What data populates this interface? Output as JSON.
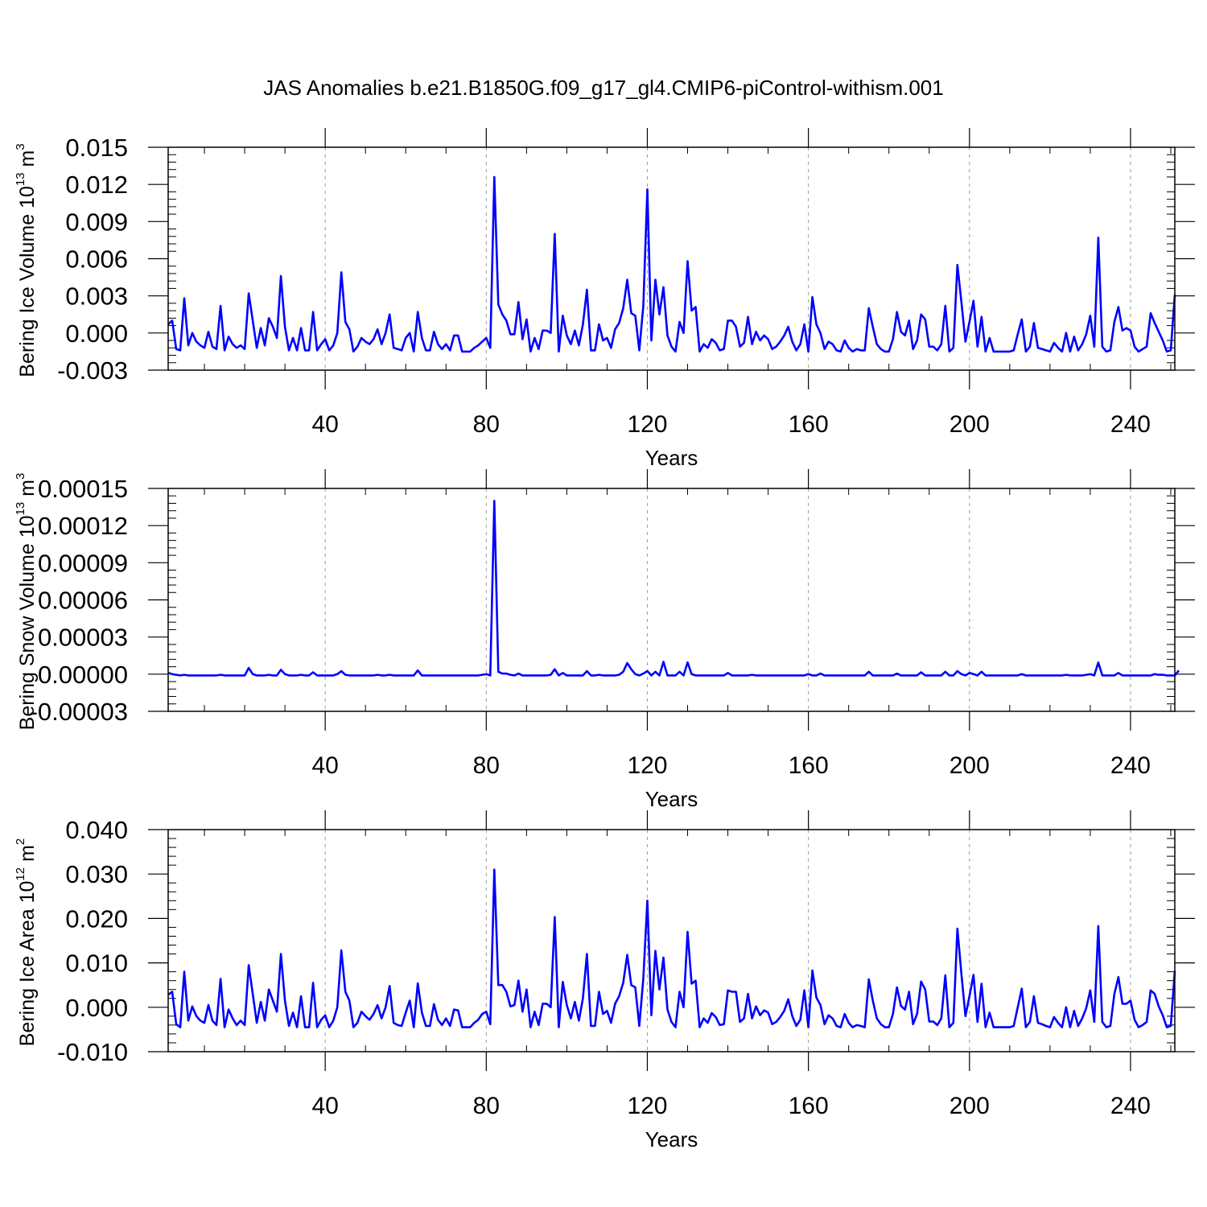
{
  "figure_title": "JAS Anomalies b.e21.B1850G.f09_g17_gl4.CMIP6-piControl-withism.001",
  "colors": {
    "series": "#0000ff",
    "grid": "#9a9a9a",
    "axes": "#000000"
  },
  "chart_data": [
    {
      "type": "line",
      "title": "",
      "xlabel": "Years",
      "ylabel": "Bering Ice Volume 10^13 m^3",
      "ylabel_parts": {
        "base": "Bering Ice Volume 10",
        "exp1": "13",
        "mid": " m",
        "exp2": "3"
      },
      "xlim": [
        1,
        251
      ],
      "ylim": [
        -0.003,
        0.015
      ],
      "xticks": [
        40,
        80,
        120,
        160,
        200,
        240
      ],
      "yticks": [
        -0.003,
        0.0,
        0.003,
        0.006,
        0.009,
        0.012,
        0.015
      ],
      "ytick_labels": [
        "-0.003",
        "0.000",
        "0.003",
        "0.006",
        "0.009",
        "0.012",
        "0.015"
      ],
      "grid_x": true,
      "series": [
        {
          "values": [
            0.0007,
            0.001,
            -0.0013,
            -0.0014,
            0.0028,
            -0.001,
            0.0,
            -0.0007,
            -0.001,
            -0.0012,
            0.0001,
            -0.0011,
            -0.0013,
            0.0022,
            -0.0014,
            -0.0003,
            -0.0009,
            -0.0012,
            -0.001,
            -0.0013,
            0.0032,
            0.001,
            -0.0012,
            0.0004,
            -0.001,
            0.0012,
            0.0005,
            -0.0004,
            0.0046,
            0.0005,
            -0.0014,
            -0.0004,
            -0.0014,
            0.0004,
            -0.0014,
            -0.0014,
            0.0017,
            -0.0014,
            -0.0009,
            -0.0005,
            -0.0014,
            -0.001,
            0.0,
            0.0049,
            0.0009,
            0.0003,
            -0.0015,
            -0.0011,
            -0.0004,
            -0.0007,
            -0.0009,
            -0.0005,
            0.0003,
            -0.0009,
            0.0,
            0.0015,
            -0.0012,
            -0.0013,
            -0.0014,
            -0.0004,
            0.0,
            -0.0015,
            0.0017,
            -0.0004,
            -0.0014,
            -0.0014,
            0.0001,
            -0.0009,
            -0.0013,
            -0.0009,
            -0.0014,
            -0.0002,
            -0.0002,
            -0.0015,
            -0.0015,
            -0.0015,
            -0.0012,
            -0.001,
            -0.0007,
            -0.0004,
            -0.0012,
            0.0126,
            0.0023,
            0.0015,
            0.001,
            -0.0001,
            -0.0001,
            0.0025,
            -0.0005,
            0.0011,
            -0.0015,
            -0.0004,
            -0.0013,
            0.0002,
            0.0002,
            0.0,
            0.008,
            -0.0015,
            0.0014,
            -0.0002,
            -0.0009,
            0.0002,
            -0.001,
            0.0007,
            0.0035,
            -0.0014,
            -0.0014,
            0.0007,
            -0.0006,
            -0.0004,
            -0.0012,
            0.0003,
            0.0008,
            0.002,
            0.0043,
            0.0016,
            0.0014,
            -0.0014,
            0.0022,
            0.0116,
            -0.0006,
            0.0043,
            0.0015,
            0.0037,
            -0.0002,
            -0.0011,
            -0.0015,
            0.0009,
            0.0,
            0.0058,
            0.0018,
            0.0021,
            -0.0015,
            -0.0009,
            -0.0012,
            -0.0005,
            -0.0008,
            -0.0014,
            -0.0013,
            0.001,
            0.001,
            0.0005,
            -0.0011,
            -0.0008,
            0.0013,
            -0.0009,
            0.0001,
            -0.0006,
            -0.0002,
            -0.0005,
            -0.0013,
            -0.0011,
            -0.0007,
            -0.0002,
            0.0005,
            -0.0007,
            -0.0014,
            -0.0009,
            0.0007,
            -0.0015,
            0.0029,
            0.0007,
            0.0,
            -0.0013,
            -0.0007,
            -0.0009,
            -0.0014,
            -0.0015,
            -0.0006,
            -0.0012,
            -0.0015,
            -0.0013,
            -0.0014,
            -0.0014,
            0.002,
            0.0005,
            -0.0009,
            -0.0013,
            -0.0015,
            -0.0015,
            -0.0005,
            0.0017,
            0.0001,
            -0.0002,
            0.001,
            -0.0013,
            -0.0006,
            0.0015,
            0.0011,
            -0.0011,
            -0.0011,
            -0.0014,
            -0.0009,
            0.0022,
            -0.0015,
            -0.0012,
            0.0055,
            0.0025,
            -0.0007,
            0.0009,
            0.0026,
            -0.0011,
            0.0013,
            -0.0015,
            -0.0004,
            -0.0015,
            -0.0015,
            -0.0015,
            -0.0015,
            -0.0015,
            -0.0014,
            -0.0001,
            0.0011,
            -0.0015,
            -0.0011,
            0.0008,
            -0.0012,
            -0.0013,
            -0.0014,
            -0.0015,
            -0.0008,
            -0.0012,
            -0.0015,
            0.0,
            -0.0015,
            -0.0003,
            -0.0014,
            -0.0009,
            -0.0001,
            0.0014,
            -0.0011,
            0.0077,
            -0.0011,
            -0.0015,
            -0.0014,
            0.0009,
            0.0021,
            0.0002,
            0.0004,
            0.0002,
            -0.0011,
            -0.0015,
            -0.0013,
            -0.0011,
            0.0016,
            0.0008,
            0.0001,
            -0.0006,
            -0.0015,
            -0.0014,
            0.0031
          ]
        }
      ]
    },
    {
      "type": "line",
      "title": "",
      "xlabel": "Years",
      "ylabel": "Bering Snow Volume 10^13 m^3",
      "ylabel_parts": {
        "base": "Bering Snow Volume 10",
        "exp1": "13",
        "mid": " m",
        "exp2": "3"
      },
      "xlim": [
        1,
        251
      ],
      "ylim": [
        -3e-05,
        0.00015
      ],
      "xticks": [
        40,
        80,
        120,
        160,
        200,
        240
      ],
      "yticks": [
        -3e-05,
        0.0,
        3e-05,
        6e-05,
        9e-05,
        0.00012,
        0.00015
      ],
      "ytick_labels": [
        "-0.00003",
        "0.00000",
        "0.00003",
        "0.00006",
        "0.00009",
        "0.00012",
        "0.00015"
      ],
      "grid_x": true,
      "series": [
        {
          "values": [
            1e-06,
            0.0,
            -5e-07,
            -1e-06,
            -5e-07,
            -1e-06,
            -1e-06,
            -1e-06,
            -1e-06,
            -1e-06,
            -1e-06,
            -1e-06,
            -1e-06,
            -5e-07,
            -1e-06,
            -1e-06,
            -1e-06,
            -1e-06,
            -1e-06,
            -1e-06,
            5e-06,
            0.0,
            -1e-06,
            -1e-06,
            -1e-06,
            -5e-07,
            -1e-06,
            -1e-06,
            3.5e-06,
            0.0,
            -1e-06,
            -1e-06,
            -1e-06,
            -5e-07,
            -1e-06,
            -1e-06,
            1.5e-06,
            -1e-06,
            -1e-06,
            -1e-06,
            -1e-06,
            -1e-06,
            0.0,
            2.5e-06,
            -5e-07,
            -1e-06,
            -1e-06,
            -1e-06,
            -1e-06,
            -1e-06,
            -1e-06,
            -1e-06,
            -5e-07,
            -1e-06,
            -1e-06,
            -5e-07,
            -1e-06,
            -1e-06,
            -1e-06,
            -1e-06,
            -1e-06,
            -1e-06,
            3e-06,
            -1e-06,
            -1e-06,
            -1e-06,
            -1e-06,
            -1e-06,
            -1e-06,
            -1e-06,
            -1e-06,
            -1e-06,
            -1e-06,
            -1e-06,
            -1e-06,
            -1e-06,
            -1e-06,
            -1e-06,
            -5e-07,
            0.0,
            -1e-06,
            0.00014,
            2e-06,
            5e-07,
            5e-07,
            -5e-07,
            -1e-06,
            5e-07,
            -1e-06,
            -1e-06,
            -1e-06,
            -1e-06,
            -1e-06,
            -1e-06,
            -1e-06,
            -5e-07,
            4e-06,
            -1e-06,
            1e-06,
            -1e-06,
            -1e-06,
            -1e-06,
            -1e-06,
            -1e-06,
            2.5e-06,
            -1e-06,
            -1e-06,
            -5e-07,
            -1e-06,
            -1e-06,
            -1e-06,
            -1e-06,
            -5e-07,
            2e-06,
            9e-06,
            4e-06,
            0.0,
            -1e-06,
            5e-07,
            2.5e-06,
            -1e-06,
            2e-06,
            -1e-06,
            1e-05,
            -1e-06,
            -1e-06,
            -1e-06,
            2e-06,
            -1e-06,
            9.5e-06,
            0.0,
            -1e-06,
            -1e-06,
            -1e-06,
            -1e-06,
            -1e-06,
            -1e-06,
            -1e-06,
            -1e-06,
            1e-06,
            -1e-06,
            -1e-06,
            -1e-06,
            -1e-06,
            -1e-06,
            -5e-07,
            -1e-06,
            -1e-06,
            -1e-06,
            -1e-06,
            -1e-06,
            -1e-06,
            -1e-06,
            -1e-06,
            -1e-06,
            -1e-06,
            -1e-06,
            -1e-06,
            -1e-06,
            0.0,
            -1e-06,
            -1e-06,
            5e-07,
            -1e-06,
            -1e-06,
            -1e-06,
            -1e-06,
            -1e-06,
            -1e-06,
            -1e-06,
            -1e-06,
            -1e-06,
            -1e-06,
            -1e-06,
            2e-06,
            -1e-06,
            -1e-06,
            -1e-06,
            -1e-06,
            -1e-06,
            -1e-06,
            5e-07,
            -1e-06,
            -1e-06,
            -1e-06,
            -1e-06,
            -1e-06,
            1.5e-06,
            -1e-06,
            -1e-06,
            -1e-06,
            -1e-06,
            -1e-06,
            2e-06,
            -1e-06,
            -1e-06,
            2.5e-06,
            0.0,
            -1e-06,
            1e-06,
            0.0,
            -1e-06,
            2e-06,
            -1e-06,
            -1e-06,
            -1e-06,
            -1e-06,
            -1e-06,
            -1e-06,
            -1e-06,
            -1e-06,
            -1e-06,
            0.0,
            -1e-06,
            -1e-06,
            -1e-06,
            -1e-06,
            -1e-06,
            -1e-06,
            -1e-06,
            -1e-06,
            -1e-06,
            -1e-06,
            -5e-07,
            -1e-06,
            -1e-06,
            -1e-06,
            -1e-06,
            -5e-07,
            0.0,
            -1e-06,
            9.5e-06,
            -1e-06,
            -1e-06,
            -1e-06,
            -1e-06,
            1e-06,
            -1e-06,
            -1e-06,
            -1e-06,
            -1e-06,
            -1e-06,
            -1e-06,
            -1e-06,
            -1e-06,
            0.0,
            -5e-07,
            -5e-07,
            -1e-06,
            -1e-06,
            -1e-06,
            3e-06
          ]
        }
      ]
    },
    {
      "type": "line",
      "title": "",
      "xlabel": "Years",
      "ylabel": "Bering Ice Area 10^12 m^2",
      "ylabel_parts": {
        "base": "Bering Ice Area 10",
        "exp1": "12",
        "mid": " m",
        "exp2": "2"
      },
      "xlim": [
        1,
        251
      ],
      "ylim": [
        -0.01,
        0.04
      ],
      "xticks": [
        40,
        80,
        120,
        160,
        200,
        240
      ],
      "yticks": [
        -0.01,
        0.0,
        0.01,
        0.02,
        0.03,
        0.04
      ],
      "ytick_labels": [
        "-0.010",
        "0.000",
        "0.010",
        "0.020",
        "0.030",
        "0.040"
      ],
      "grid_x": true,
      "series": [
        {
          "values": [
            0.0028,
            0.0035,
            -0.0038,
            -0.0045,
            0.008,
            -0.003,
            0.0002,
            -0.002,
            -0.003,
            -0.0035,
            0.0005,
            -0.003,
            -0.004,
            0.0064,
            -0.0045,
            -0.0005,
            -0.0025,
            -0.004,
            -0.003,
            -0.004,
            0.0095,
            0.003,
            -0.0035,
            0.0012,
            -0.003,
            0.004,
            0.0015,
            -0.001,
            0.012,
            0.0015,
            -0.0042,
            -0.0012,
            -0.0045,
            0.0025,
            -0.0045,
            -0.0045,
            0.0055,
            -0.0045,
            -0.0028,
            -0.0018,
            -0.0045,
            -0.003,
            0.0,
            0.0128,
            0.0035,
            0.0015,
            -0.0045,
            -0.0035,
            -0.001,
            -0.002,
            -0.0028,
            -0.0015,
            0.0005,
            -0.0025,
            0.0,
            0.0048,
            -0.0035,
            -0.004,
            -0.0042,
            -0.0012,
            0.0015,
            -0.0045,
            0.0054,
            -0.0012,
            -0.0042,
            -0.0042,
            0.0007,
            -0.0028,
            -0.004,
            -0.0025,
            -0.0042,
            -0.0005,
            -0.0007,
            -0.0045,
            -0.0045,
            -0.0045,
            -0.0035,
            -0.0028,
            -0.0015,
            -0.001,
            -0.0038,
            0.031,
            0.005,
            0.005,
            0.0035,
            0.0002,
            0.0005,
            0.006,
            -0.001,
            0.004,
            -0.0045,
            -0.001,
            -0.004,
            0.0008,
            0.0008,
            0.0,
            0.0203,
            -0.0045,
            0.0057,
            0.0005,
            -0.0025,
            0.0012,
            -0.003,
            0.002,
            0.012,
            -0.0042,
            -0.0042,
            0.0035,
            -0.0015,
            -0.0008,
            -0.0035,
            0.0008,
            0.0025,
            0.0055,
            0.0118,
            0.005,
            0.0045,
            -0.0042,
            0.0065,
            0.024,
            -0.0018,
            0.0127,
            0.004,
            0.0112,
            -0.0005,
            -0.0033,
            -0.0045,
            0.0035,
            0.0,
            0.017,
            0.0053,
            0.006,
            -0.0045,
            -0.0025,
            -0.0035,
            -0.0013,
            -0.0022,
            -0.004,
            -0.0038,
            0.0038,
            0.0035,
            0.0035,
            -0.0033,
            -0.0025,
            0.003,
            -0.0025,
            0.0002,
            -0.0018,
            -0.0007,
            -0.0012,
            -0.0038,
            -0.0033,
            -0.0022,
            -0.0008,
            0.0018,
            -0.002,
            -0.0042,
            -0.0028,
            0.0038,
            -0.0045,
            0.0083,
            0.0022,
            0.0005,
            -0.0038,
            -0.0018,
            -0.0025,
            -0.0042,
            -0.0045,
            -0.0015,
            -0.0035,
            -0.0045,
            -0.004,
            -0.0042,
            -0.0045,
            0.0063,
            0.0015,
            -0.0025,
            -0.0038,
            -0.0045,
            -0.0045,
            -0.0015,
            0.0045,
            0.0003,
            -0.0005,
            0.0035,
            -0.0038,
            -0.0015,
            0.0058,
            0.004,
            -0.0032,
            -0.0032,
            -0.004,
            -0.0025,
            0.0072,
            -0.0045,
            -0.0035,
            0.0177,
            0.0075,
            -0.002,
            0.0025,
            0.0073,
            -0.0033,
            0.0053,
            -0.0045,
            -0.0012,
            -0.0045,
            -0.0045,
            -0.0045,
            -0.0045,
            -0.0045,
            -0.0042,
            0.0,
            0.0042,
            -0.0045,
            -0.0033,
            0.0025,
            -0.0035,
            -0.0038,
            -0.0042,
            -0.0045,
            -0.0022,
            -0.0035,
            -0.0045,
            0.0,
            -0.0045,
            -0.0008,
            -0.0042,
            -0.0025,
            -0.0002,
            0.0038,
            -0.0033,
            0.0183,
            -0.0033,
            -0.0045,
            -0.0042,
            0.003,
            0.0068,
            0.0008,
            0.0008,
            0.0015,
            -0.0028,
            -0.0045,
            -0.004,
            -0.0033,
            0.0038,
            0.003,
            0.0002,
            -0.0018,
            -0.0045,
            -0.0042,
            0.0082
          ]
        }
      ]
    }
  ]
}
